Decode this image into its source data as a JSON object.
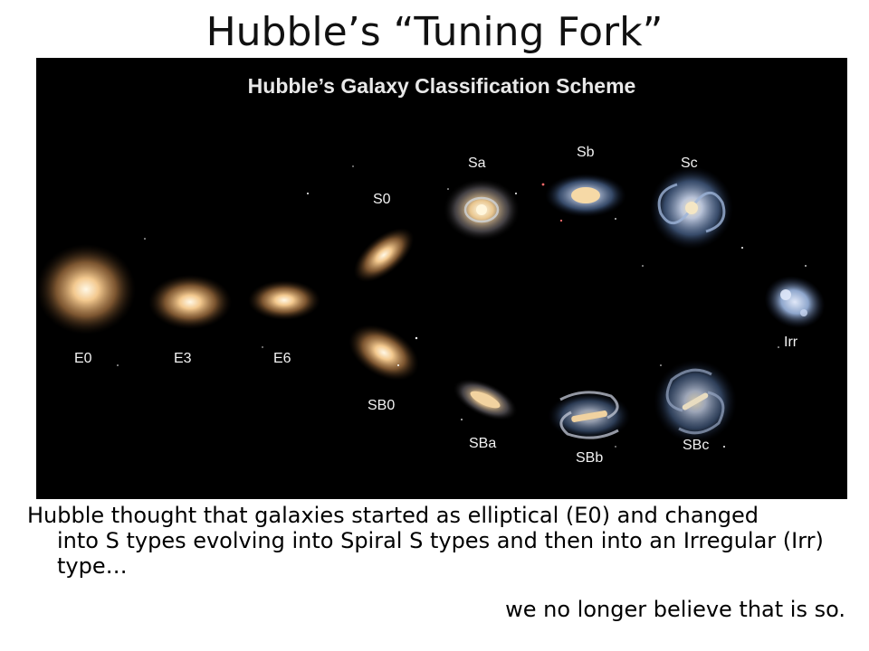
{
  "slide": {
    "title": "Hubble’s “Tuning Fork”",
    "caption_line1": "Hubble thought that galaxies started as elliptical (E0) and changed",
    "caption_rest": "into S types evolving into Spiral S types and then into an Irregular (Irr) type…",
    "conclusion": "we no longer believe that is so."
  },
  "diagram": {
    "title": "Hubble’s Galaxy Classification Scheme",
    "background": "#000000",
    "galaxies": {
      "e0": "E0",
      "e3": "E3",
      "e6": "E6",
      "s0": "S0",
      "sa": "Sa",
      "sb": "Sb",
      "sc": "Sc",
      "sb0": "SB0",
      "sba": "SBa",
      "sbb": "SBb",
      "sbc": "SBc",
      "irr": "Irr"
    }
  }
}
